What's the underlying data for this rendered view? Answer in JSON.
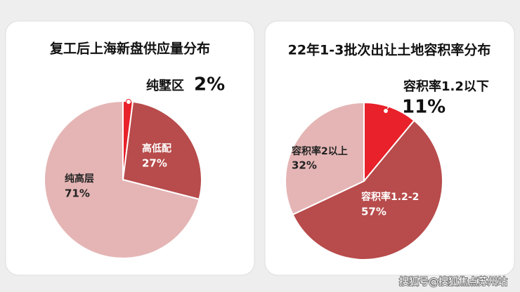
{
  "chart_data": [
    {
      "type": "pie",
      "title": "复工后上海新盘供应量分布",
      "categories": [
        "纯墅区",
        "高低配",
        "纯高层"
      ],
      "values": [
        2,
        27,
        71
      ],
      "value_labels": [
        "2%",
        "27%",
        "71%"
      ],
      "colors": [
        "#e8212a",
        "#b84b4b",
        "#e5b5b5"
      ]
    },
    {
      "type": "pie",
      "title": "22年1-3批次出让土地容积率分布",
      "categories": [
        "容积率1.2以下",
        "容积率1.2-2",
        "容积率2以上"
      ],
      "values": [
        11,
        57,
        32
      ],
      "value_labels": [
        "11%",
        "57%",
        "32%"
      ],
      "colors": [
        "#e8212a",
        "#b84b4b",
        "#e5b5b5"
      ]
    }
  ],
  "watermark": "搜狐号@搜狐焦点苏州站"
}
